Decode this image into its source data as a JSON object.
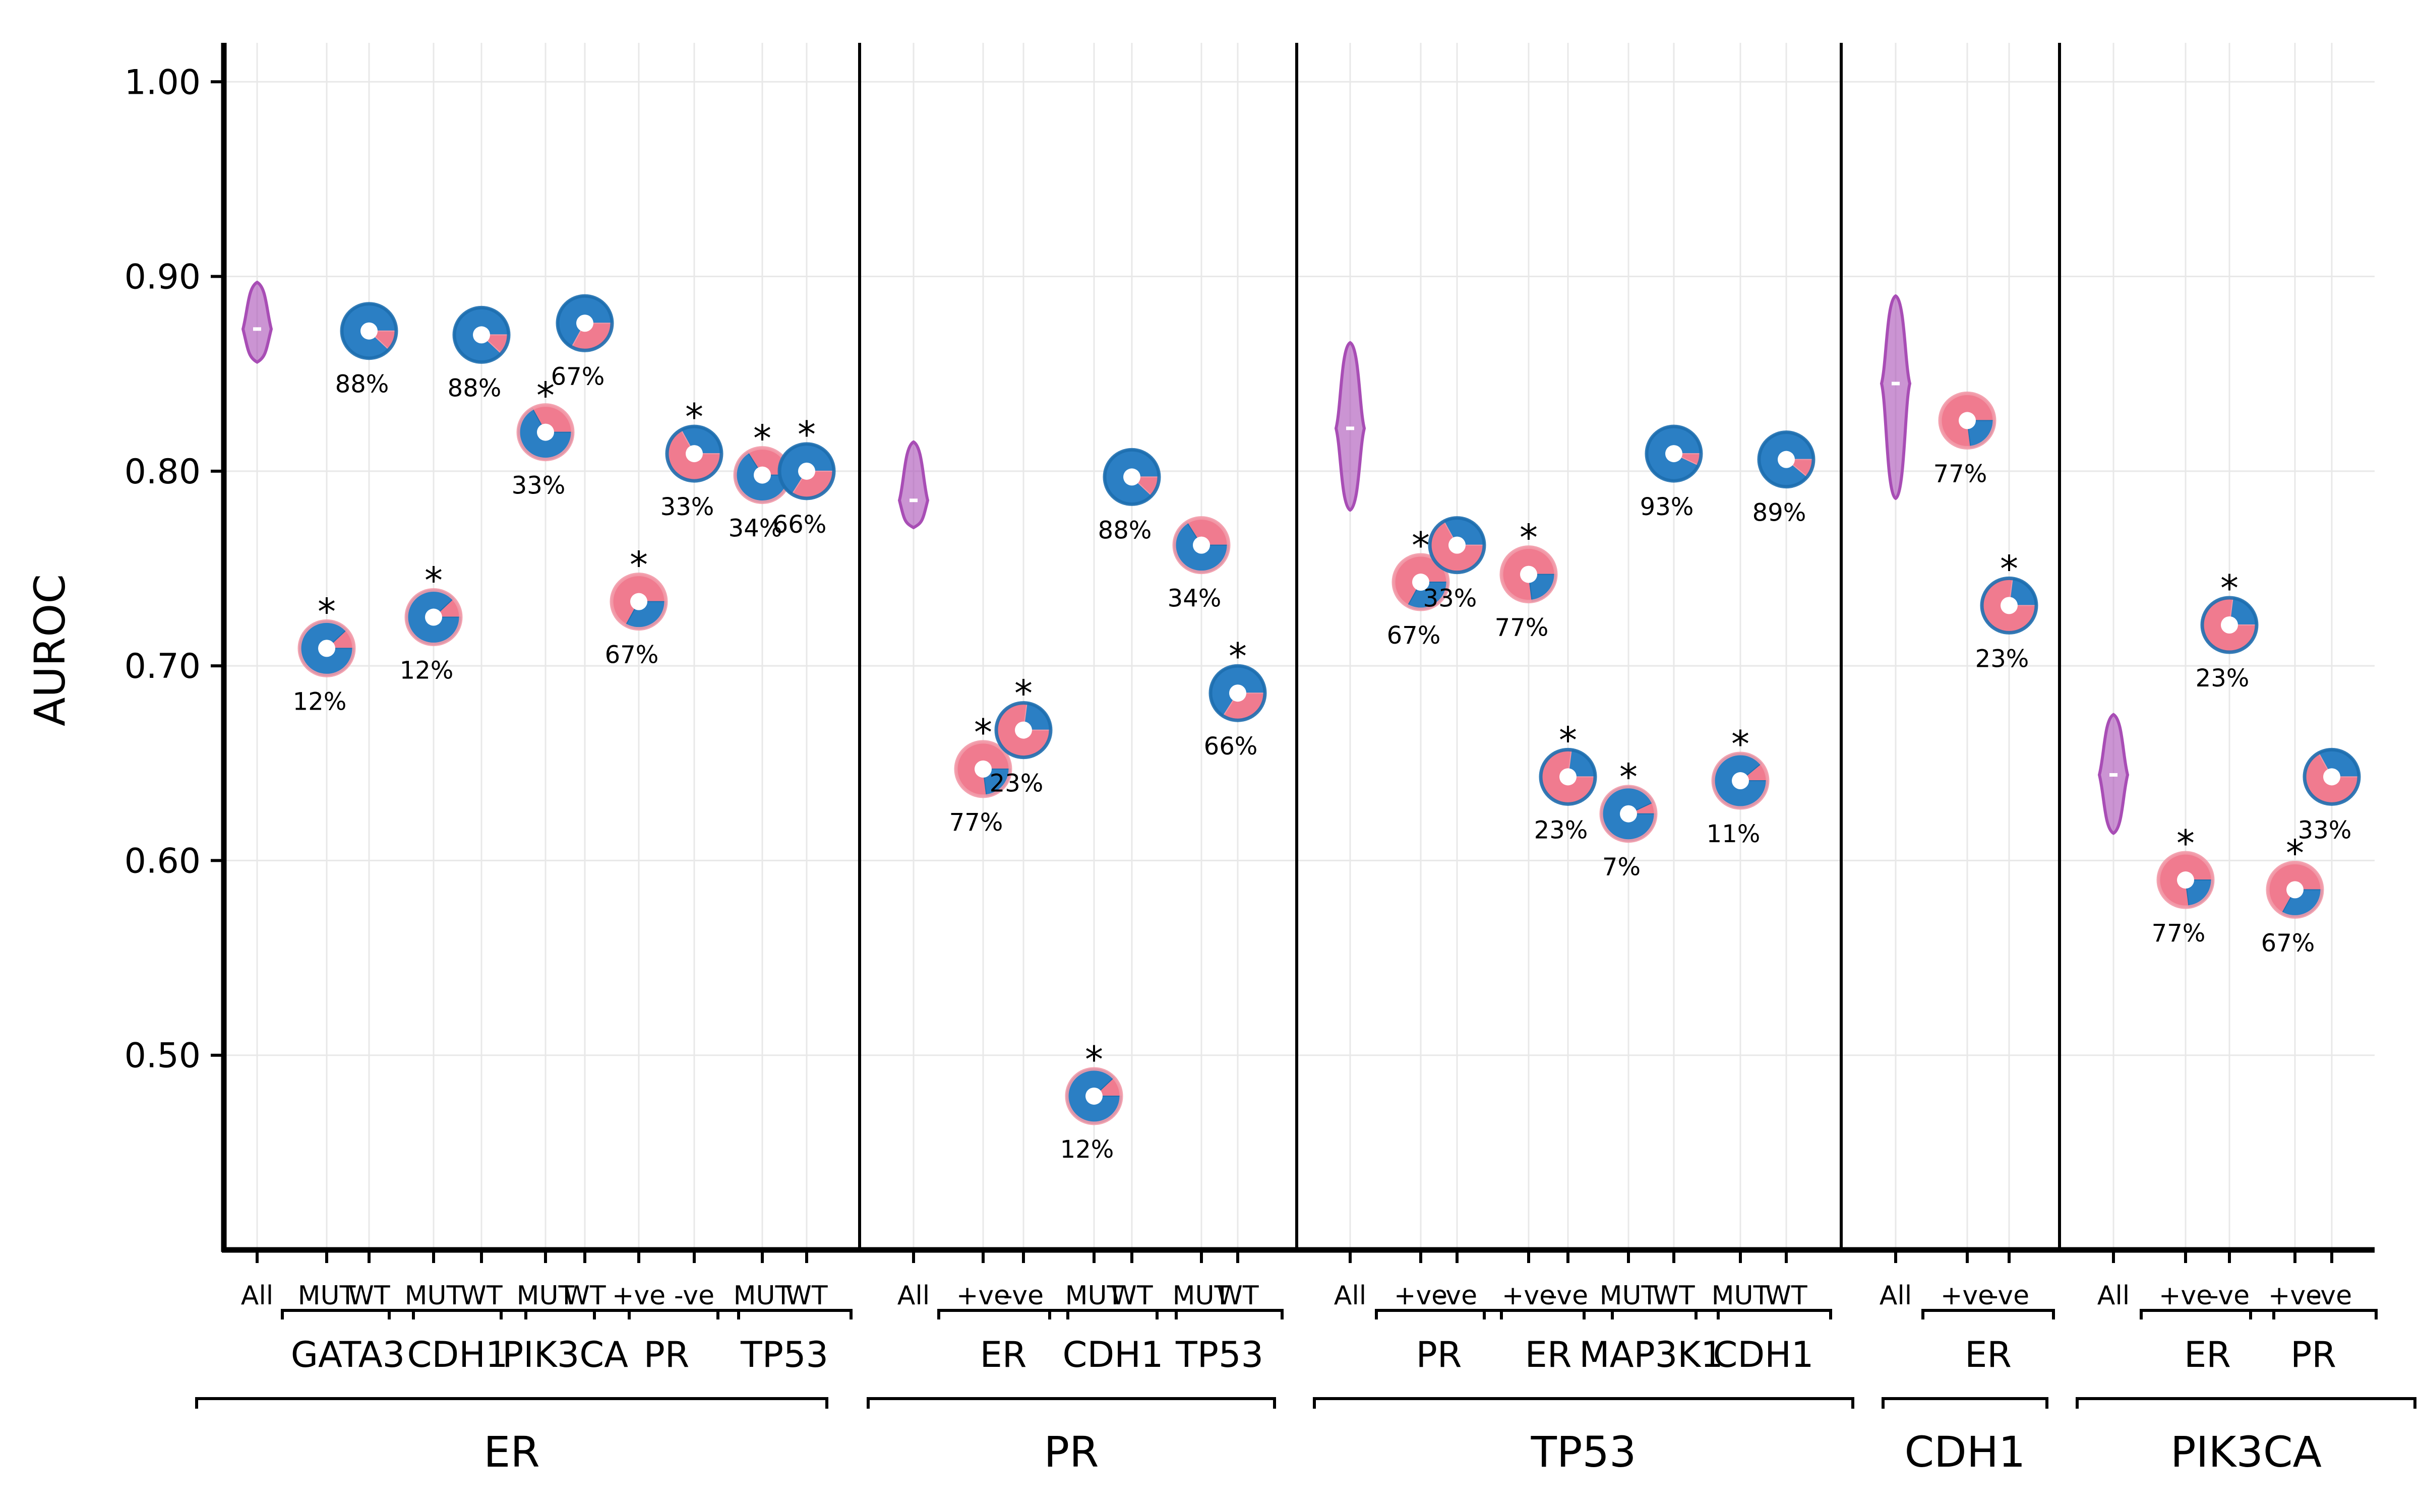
{
  "chart_data": {
    "type": "scatter",
    "ylabel": "AUROC",
    "ylim": [
      0.4,
      1.02
    ],
    "yticks": [
      0.5,
      0.6,
      0.7,
      0.8,
      0.9,
      1.0
    ],
    "ytick_labels": [
      "0.50",
      "0.60",
      "0.70",
      "0.80",
      "0.90",
      "1.00"
    ],
    "grid": true,
    "colors": {
      "violin": "#a84db5",
      "mut_pos": "#f07b8f",
      "mut_pos_dark": "#f29aa9",
      "wt_neg": "#2b7fc4",
      "wt_neg_dark": "#1e6fb0"
    },
    "tick_labels": [
      "All",
      "MUT",
      "WT",
      "MUT",
      "WT",
      "MUT",
      "WT",
      "+ve",
      "-ve",
      "MUT",
      "WT",
      "All",
      "+ve",
      "-ve",
      "MUT",
      "WT",
      "MUT",
      "WT",
      "All",
      "+ve",
      "-ve",
      "+ve",
      "-ve",
      "MUT",
      "WT",
      "MUT",
      "WT",
      "All",
      "+ve",
      "-ve",
      "All",
      "+ve",
      "-ve",
      "+ve",
      "-ve"
    ],
    "subgroup_labels": [
      "GATA3",
      "CDH1",
      "PIK3CA",
      "PR",
      "TP53",
      "ER",
      "CDH1",
      "TP53",
      "PR",
      "ER",
      "MAP3K1",
      "CDH1",
      "ER",
      "ER",
      "PR"
    ],
    "panel_labels": [
      "ER",
      "PR",
      "TP53",
      "CDH1",
      "PIK3CA"
    ],
    "violins": [
      {
        "panel": "ER",
        "min": 0.856,
        "max": 0.897,
        "median": 0.873
      },
      {
        "panel": "PR",
        "min": 0.771,
        "max": 0.815,
        "median": 0.785
      },
      {
        "panel": "TP53",
        "min": 0.78,
        "max": 0.866,
        "median": 0.822
      },
      {
        "panel": "CDH1",
        "min": 0.786,
        "max": 0.89,
        "median": 0.845
      },
      {
        "panel": "PIK3CA",
        "min": 0.614,
        "max": 0.675,
        "median": 0.644
      }
    ],
    "points": [
      {
        "panel": "ER",
        "group": "GATA3",
        "label": "MUT",
        "y": 0.709,
        "pct": 12,
        "pct_label": "12%",
        "star": "*"
      },
      {
        "panel": "ER",
        "group": "GATA3",
        "label": "WT",
        "y": 0.872,
        "pct": 88,
        "pct_label": "88%",
        "star": ""
      },
      {
        "panel": "ER",
        "group": "CDH1",
        "label": "MUT",
        "y": 0.725,
        "pct": 12,
        "pct_label": "12%",
        "star": "*"
      },
      {
        "panel": "ER",
        "group": "CDH1",
        "label": "WT",
        "y": 0.87,
        "pct": 88,
        "pct_label": "88%",
        "star": ""
      },
      {
        "panel": "ER",
        "group": "PIK3CA",
        "label": "MUT",
        "y": 0.82,
        "pct": 33,
        "pct_label": "33%",
        "star": "*"
      },
      {
        "panel": "ER",
        "group": "PIK3CA",
        "label": "WT",
        "y": 0.876,
        "pct": 67,
        "pct_label": "67%",
        "star": ""
      },
      {
        "panel": "ER",
        "group": "PR",
        "label": "+ve",
        "y": 0.733,
        "pct": 67,
        "pct_label": "67%",
        "star": "*"
      },
      {
        "panel": "ER",
        "group": "PR",
        "label": "-ve",
        "y": 0.809,
        "pct": 33,
        "pct_label": "33%",
        "star": "*"
      },
      {
        "panel": "ER",
        "group": "TP53",
        "label": "MUT",
        "y": 0.798,
        "pct": 34,
        "pct_label": "34%",
        "star": "*"
      },
      {
        "panel": "ER",
        "group": "TP53",
        "label": "WT",
        "y": 0.8,
        "pct": 66,
        "pct_label": "66%",
        "star": "*"
      },
      {
        "panel": "PR",
        "group": "ER",
        "label": "+ve",
        "y": 0.647,
        "pct": 77,
        "pct_label": "77%",
        "star": "*"
      },
      {
        "panel": "PR",
        "group": "ER",
        "label": "-ve",
        "y": 0.667,
        "pct": 23,
        "pct_label": "23%",
        "star": "*"
      },
      {
        "panel": "PR",
        "group": "CDH1",
        "label": "MUT",
        "y": 0.479,
        "pct": 12,
        "pct_label": "12%",
        "star": "*"
      },
      {
        "panel": "PR",
        "group": "CDH1",
        "label": "WT",
        "y": 0.797,
        "pct": 88,
        "pct_label": "88%",
        "star": ""
      },
      {
        "panel": "PR",
        "group": "TP53",
        "label": "MUT",
        "y": 0.762,
        "pct": 34,
        "pct_label": "34%",
        "star": ""
      },
      {
        "panel": "PR",
        "group": "TP53",
        "label": "WT",
        "y": 0.686,
        "pct": 66,
        "pct_label": "66%",
        "star": "*"
      },
      {
        "panel": "TP53",
        "group": "PR",
        "label": "+ve",
        "y": 0.743,
        "pct": 67,
        "pct_label": "67%",
        "star": "*"
      },
      {
        "panel": "TP53",
        "group": "PR",
        "label": "-ve",
        "y": 0.762,
        "pct": 33,
        "pct_label": "33%",
        "star": ""
      },
      {
        "panel": "TP53",
        "group": "ER",
        "label": "+ve",
        "y": 0.747,
        "pct": 77,
        "pct_label": "77%",
        "star": "*"
      },
      {
        "panel": "TP53",
        "group": "ER",
        "label": "-ve",
        "y": 0.643,
        "pct": 23,
        "pct_label": "23%",
        "star": "*"
      },
      {
        "panel": "TP53",
        "group": "MAP3K1",
        "label": "MUT",
        "y": 0.624,
        "pct": 7,
        "pct_label": "7%",
        "star": "*"
      },
      {
        "panel": "TP53",
        "group": "MAP3K1",
        "label": "WT",
        "y": 0.809,
        "pct": 93,
        "pct_label": "93%",
        "star": ""
      },
      {
        "panel": "TP53",
        "group": "CDH1",
        "label": "MUT",
        "y": 0.641,
        "pct": 11,
        "pct_label": "11%",
        "star": "*"
      },
      {
        "panel": "TP53",
        "group": "CDH1",
        "label": "WT",
        "y": 0.806,
        "pct": 89,
        "pct_label": "89%",
        "star": ""
      },
      {
        "panel": "CDH1",
        "group": "ER",
        "label": "+ve",
        "y": 0.826,
        "pct": 77,
        "pct_label": "77%",
        "star": ""
      },
      {
        "panel": "CDH1",
        "group": "ER",
        "label": "-ve",
        "y": 0.731,
        "pct": 23,
        "pct_label": "23%",
        "star": "*"
      },
      {
        "panel": "PIK3CA",
        "group": "ER",
        "label": "+ve",
        "y": 0.59,
        "pct": 77,
        "pct_label": "77%",
        "star": "*"
      },
      {
        "panel": "PIK3CA",
        "group": "ER",
        "label": "-ve",
        "y": 0.721,
        "pct": 23,
        "pct_label": "23%",
        "star": "*"
      },
      {
        "panel": "PIK3CA",
        "group": "PR",
        "label": "+ve",
        "y": 0.585,
        "pct": 67,
        "pct_label": "67%",
        "star": "*"
      },
      {
        "panel": "PIK3CA",
        "group": "PR",
        "label": "-ve",
        "y": 0.643,
        "pct": 33,
        "pct_label": "33%",
        "star": ""
      }
    ]
  }
}
